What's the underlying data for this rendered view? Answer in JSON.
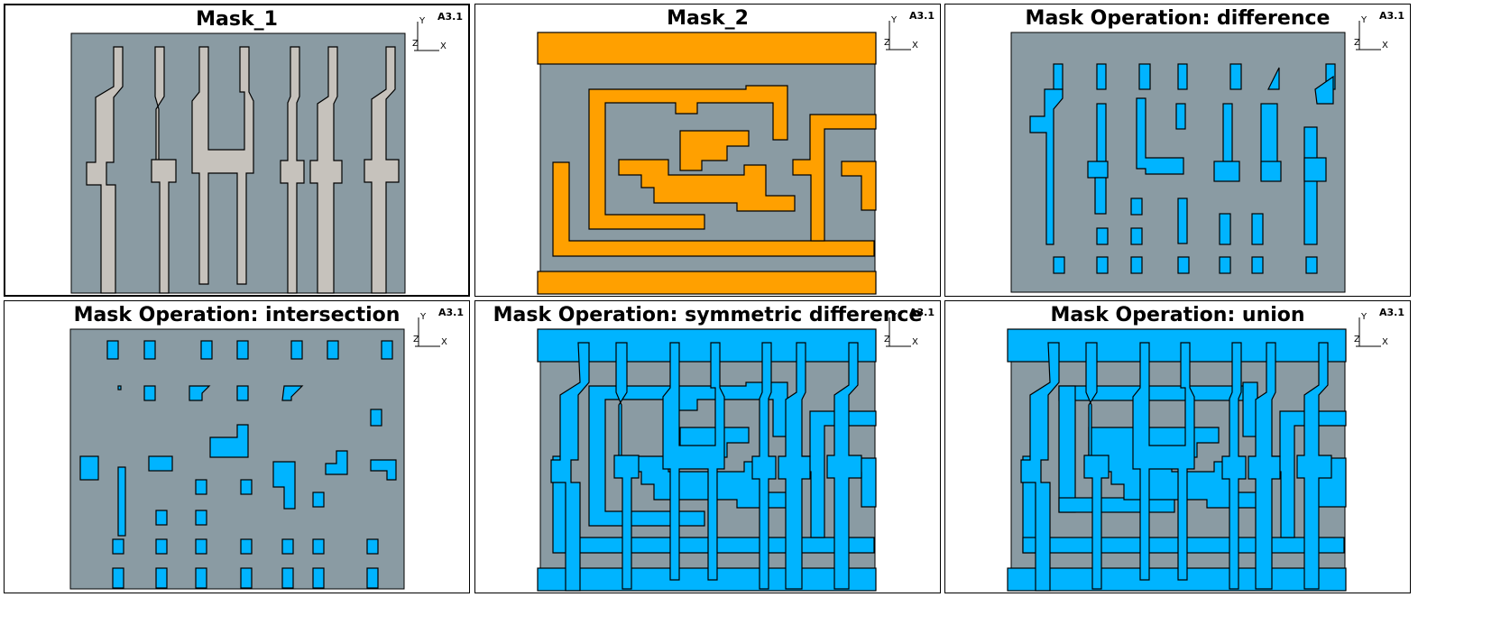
{
  "colors": {
    "background": "#8a9ba3",
    "mask1": "#c6c2bc",
    "mask2": "#ffa000",
    "result": "#00b4ff",
    "outline": "#000000"
  },
  "axis_labels": {
    "y": "Y",
    "z": "Z",
    "x": "X"
  },
  "panels": [
    {
      "title": "Mask_1",
      "view_label": "A3.1",
      "fill": "mask1",
      "active": true
    },
    {
      "title": "Mask_2",
      "view_label": "A3.1",
      "fill": "mask2",
      "active": false
    },
    {
      "title": "Mask Operation: difference",
      "view_label": "A3.1",
      "fill": "result",
      "active": false
    },
    {
      "title": "Mask Operation: intersection",
      "view_label": "A3.1",
      "fill": "result",
      "active": false
    },
    {
      "title": "Mask Operation: symmetric difference",
      "view_label": "A3.1",
      "fill": "result",
      "active": false
    },
    {
      "title": "Mask Operation: union",
      "view_label": "A3.1",
      "fill": "result",
      "active": false
    }
  ]
}
